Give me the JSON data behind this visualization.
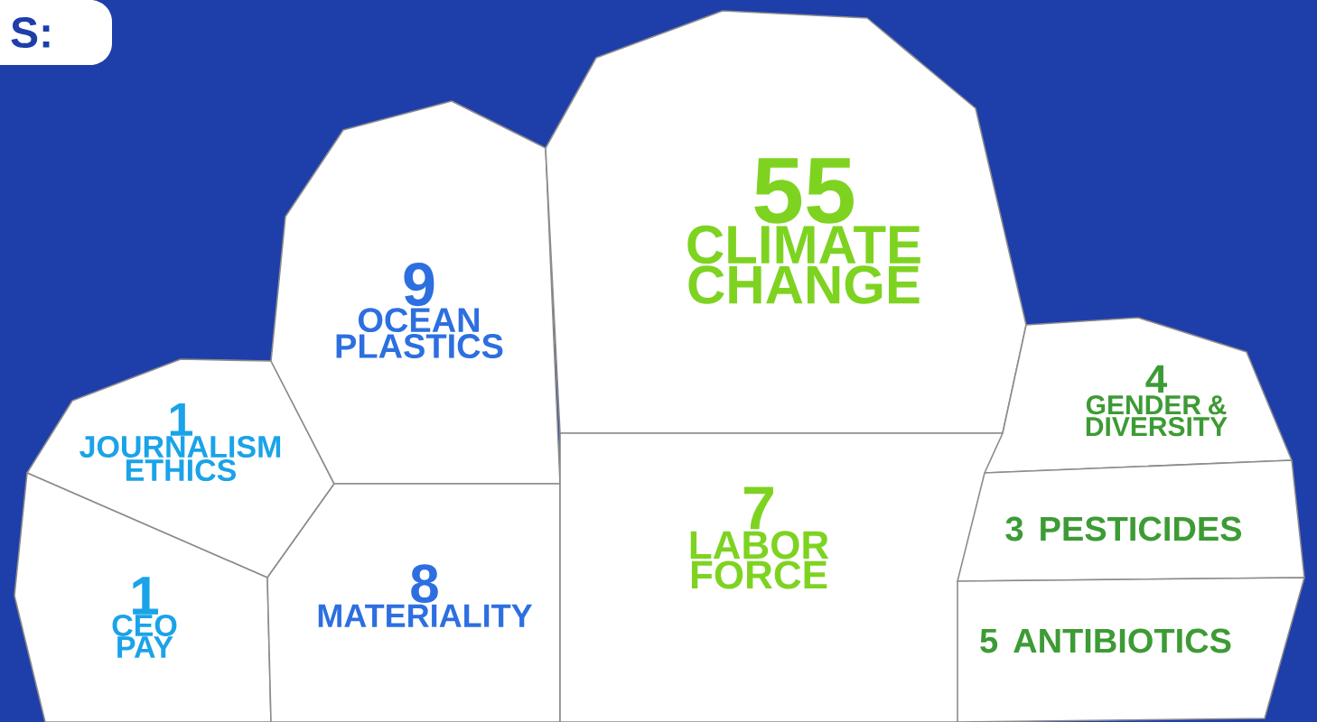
{
  "chart_data": {
    "type": "other",
    "title": "S:",
    "categories": [
      "JOURNALISM ETHICS",
      "CEO PAY",
      "OCEAN PLASTICS",
      "MATERIALITY",
      "CLIMATE CHANGE",
      "LABOR FORCE",
      "GENDER & DIVERSITY",
      "PESTICIDES",
      "ANTIBIOTICS"
    ],
    "values": [
      1,
      1,
      9,
      8,
      55,
      7,
      4,
      3,
      5
    ],
    "color": "#ffffff",
    "data_labels": true
  }
}
